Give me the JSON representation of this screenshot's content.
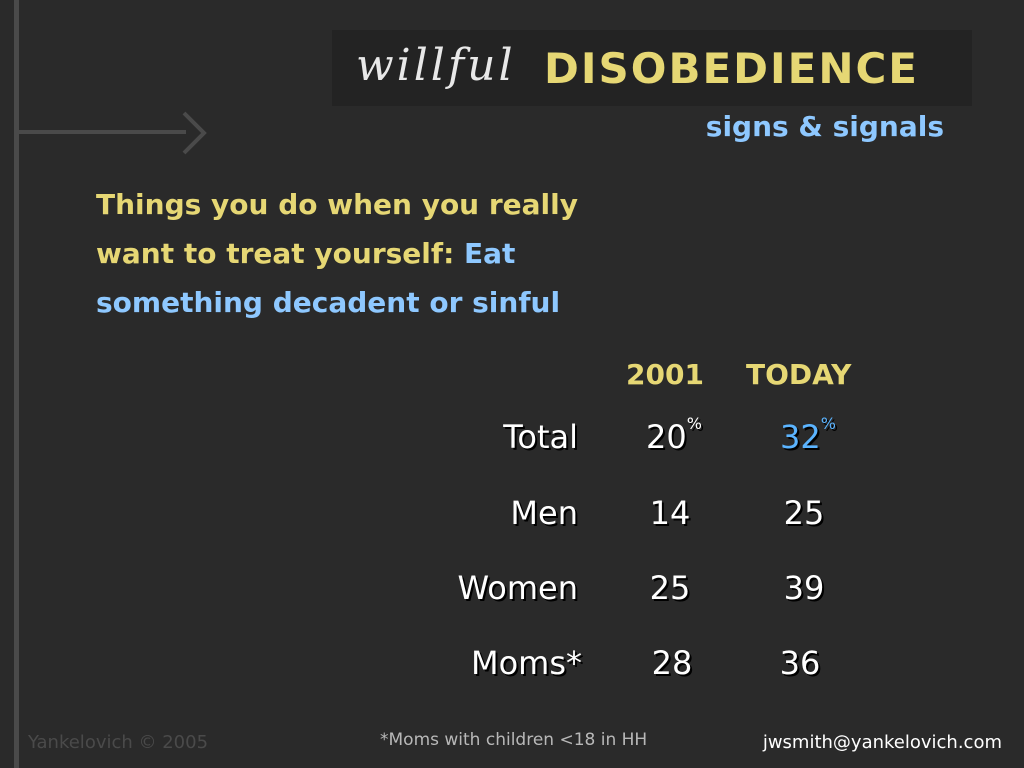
{
  "header": {
    "title_script": "willful",
    "title_bold": "DISOBEDIENCE",
    "subtitle": "signs & signals"
  },
  "question": {
    "prefix": "Things you do when you really want to treat yourself: ",
    "highlight": "Eat something decadent or sinful"
  },
  "table": {
    "columns": [
      "2001",
      "TODAY"
    ],
    "percent_sign": "%",
    "rows": [
      {
        "label": "Total",
        "y2001": "20",
        "today": "32"
      },
      {
        "label": "Men",
        "y2001": "14",
        "today": "25"
      },
      {
        "label": "Women",
        "y2001": "25",
        "today": "39"
      },
      {
        "label": "Moms*",
        "y2001": "28",
        "today": "36"
      }
    ]
  },
  "footer": {
    "copyright": "Yankelovich © 2005",
    "note": "*Moms with children <18 in HH",
    "email": "jwsmith@yankelovich.com"
  },
  "colors": {
    "background": "#2a2a2a",
    "accent_yellow": "#e6d774",
    "accent_blue": "#8ec8ff",
    "highlight_blue": "#5bb4ff"
  }
}
